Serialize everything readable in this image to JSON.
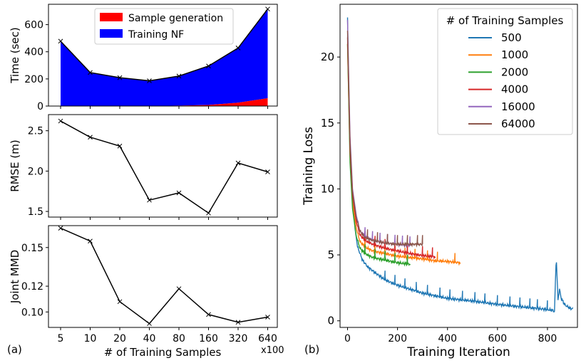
{
  "panel_labels": {
    "left": "(a)",
    "right": "(b)"
  },
  "chart_data": [
    {
      "type": "area",
      "panel": "a-top",
      "ylabel": "Time (sec)",
      "ylim": [
        0,
        750
      ],
      "yticks": [
        0,
        200,
        400,
        600
      ],
      "categories": [
        "5",
        "10",
        "20",
        "40",
        "80",
        "160",
        "320",
        "640"
      ],
      "series": [
        {
          "name": "Sample generation",
          "color": "#ff0000",
          "values": [
            0,
            0,
            0,
            1,
            3,
            8,
            25,
            58
          ]
        },
        {
          "name": "Training NF",
          "color": "#0000ff",
          "values": [
            478,
            247,
            209,
            185,
            218,
            287,
            403,
            657
          ]
        }
      ],
      "total_line": [
        478,
        247,
        209,
        186,
        221,
        295,
        428,
        715
      ],
      "legend_position": "top"
    },
    {
      "type": "line",
      "panel": "a-middle",
      "ylabel": "RMSE (m)",
      "ylim": [
        1.43,
        2.7
      ],
      "yticks": [
        1.5,
        2.0,
        2.5
      ],
      "yticklabels": [
        "1.5",
        "2.0",
        "2.5"
      ],
      "categories": [
        "5",
        "10",
        "20",
        "40",
        "80",
        "160",
        "320",
        "640"
      ],
      "values": [
        2.62,
        2.42,
        2.31,
        1.64,
        1.73,
        1.48,
        2.1,
        1.99
      ]
    },
    {
      "type": "line",
      "panel": "a-bottom",
      "ylabel": "Joint MMD",
      "xlabel": "# of Training Samples",
      "xunit": "x100",
      "ylim": [
        0.088,
        0.167
      ],
      "yticks": [
        0.1,
        0.12,
        0.15
      ],
      "yticklabels": [
        "0.10",
        "0.12",
        "0.15"
      ],
      "categories": [
        "5",
        "10",
        "20",
        "40",
        "80",
        "160",
        "320",
        "640"
      ],
      "values": [
        0.165,
        0.155,
        0.108,
        0.091,
        0.118,
        0.098,
        0.092,
        0.096
      ]
    },
    {
      "type": "line",
      "panel": "b",
      "xlabel": "Training Iteration",
      "ylabel": "Training Loss",
      "xlim": [
        -30,
        920
      ],
      "ylim": [
        -0.5,
        24
      ],
      "xticks": [
        0,
        200,
        400,
        600,
        800
      ],
      "yticks": [
        0,
        5,
        10,
        15,
        20
      ],
      "legend_title": "# of Training Samples",
      "legend_position": "top-right",
      "series": [
        {
          "name": "500",
          "color": "#1f77b4",
          "points": [
            [
              0,
              23
            ],
            [
              5,
              17
            ],
            [
              10,
              13
            ],
            [
              20,
              9.5
            ],
            [
              30,
              7
            ],
            [
              40,
              5.6
            ],
            [
              60,
              4.6
            ],
            [
              80,
              4.1
            ],
            [
              100,
              3.8
            ],
            [
              150,
              3.1
            ],
            [
              200,
              2.7
            ],
            [
              250,
              2.4
            ],
            [
              300,
              2.1
            ],
            [
              400,
              1.7
            ],
            [
              500,
              1.5
            ],
            [
              600,
              1.25
            ],
            [
              700,
              1.05
            ],
            [
              780,
              0.9
            ],
            [
              820,
              0.8
            ],
            [
              828,
              0.7
            ],
            [
              835,
              4.9
            ],
            [
              842,
              1.6
            ],
            [
              848,
              2.4
            ],
            [
              855,
              1.7
            ],
            [
              870,
              1.2
            ],
            [
              890,
              0.95
            ],
            [
              900,
              0.9
            ]
          ],
          "spikes": [
            150,
            190,
            230,
            275,
            320,
            370,
            410,
            460,
            510,
            550,
            600,
            650,
            690,
            730,
            760,
            800
          ]
        },
        {
          "name": "1000",
          "color": "#ff7f0e",
          "points": [
            [
              0,
              21
            ],
            [
              10,
              12.5
            ],
            [
              20,
              9
            ],
            [
              35,
              7
            ],
            [
              50,
              6
            ],
            [
              70,
              5.6
            ],
            [
              100,
              5.3
            ],
            [
              150,
              5.1
            ],
            [
              200,
              4.9
            ],
            [
              250,
              4.8
            ],
            [
              300,
              4.7
            ],
            [
              350,
              4.55
            ],
            [
              400,
              4.5
            ],
            [
              450,
              4.4
            ]
          ],
          "spikes": [
            70,
            110,
            150,
            190,
            230,
            270,
            320,
            360,
            430
          ]
        },
        {
          "name": "2000",
          "color": "#2ca02c",
          "points": [
            [
              0,
              21
            ],
            [
              10,
              12
            ],
            [
              20,
              8.5
            ],
            [
              35,
              6.4
            ],
            [
              50,
              5.5
            ],
            [
              70,
              5.1
            ],
            [
              100,
              4.8
            ],
            [
              150,
              4.6
            ],
            [
              200,
              4.4
            ],
            [
              250,
              4.3
            ]
          ],
          "spikes": [
            70,
            110,
            150,
            190,
            240
          ]
        },
        {
          "name": "4000",
          "color": "#d62728",
          "points": [
            [
              0,
              21.5
            ],
            [
              10,
              13
            ],
            [
              20,
              9.5
            ],
            [
              35,
              7.5
            ],
            [
              50,
              6.5
            ],
            [
              70,
              6.1
            ],
            [
              100,
              5.8
            ],
            [
              150,
              5.5
            ],
            [
              200,
              5.3
            ],
            [
              250,
              5.1
            ],
            [
              300,
              4.95
            ],
            [
              350,
              4.85
            ]
          ],
          "spikes": [
            70,
            110,
            150,
            190,
            240,
            300,
            340
          ]
        },
        {
          "name": "16000",
          "color": "#9467bd",
          "points": [
            [
              0,
              22.8
            ],
            [
              10,
              14
            ],
            [
              20,
              10
            ],
            [
              35,
              8
            ],
            [
              50,
              6.8
            ],
            [
              70,
              6.4
            ],
            [
              100,
              6.1
            ],
            [
              150,
              5.9
            ],
            [
              200,
              5.8
            ],
            [
              250,
              5.7
            ]
          ],
          "spikes": [
            70,
            100,
            130,
            160,
            190,
            220,
            250
          ]
        },
        {
          "name": "64000",
          "color": "#8c564b",
          "points": [
            [
              0,
              22
            ],
            [
              10,
              13.5
            ],
            [
              20,
              9.8
            ],
            [
              35,
              7.8
            ],
            [
              50,
              6.8
            ],
            [
              70,
              6.3
            ],
            [
              100,
              6.1
            ],
            [
              150,
              5.9
            ],
            [
              200,
              5.8
            ],
            [
              250,
              5.8
            ],
            [
              300,
              5.8
            ]
          ],
          "spikes": [
            80,
            120,
            160,
            200,
            240,
            280,
            300
          ]
        }
      ]
    }
  ]
}
